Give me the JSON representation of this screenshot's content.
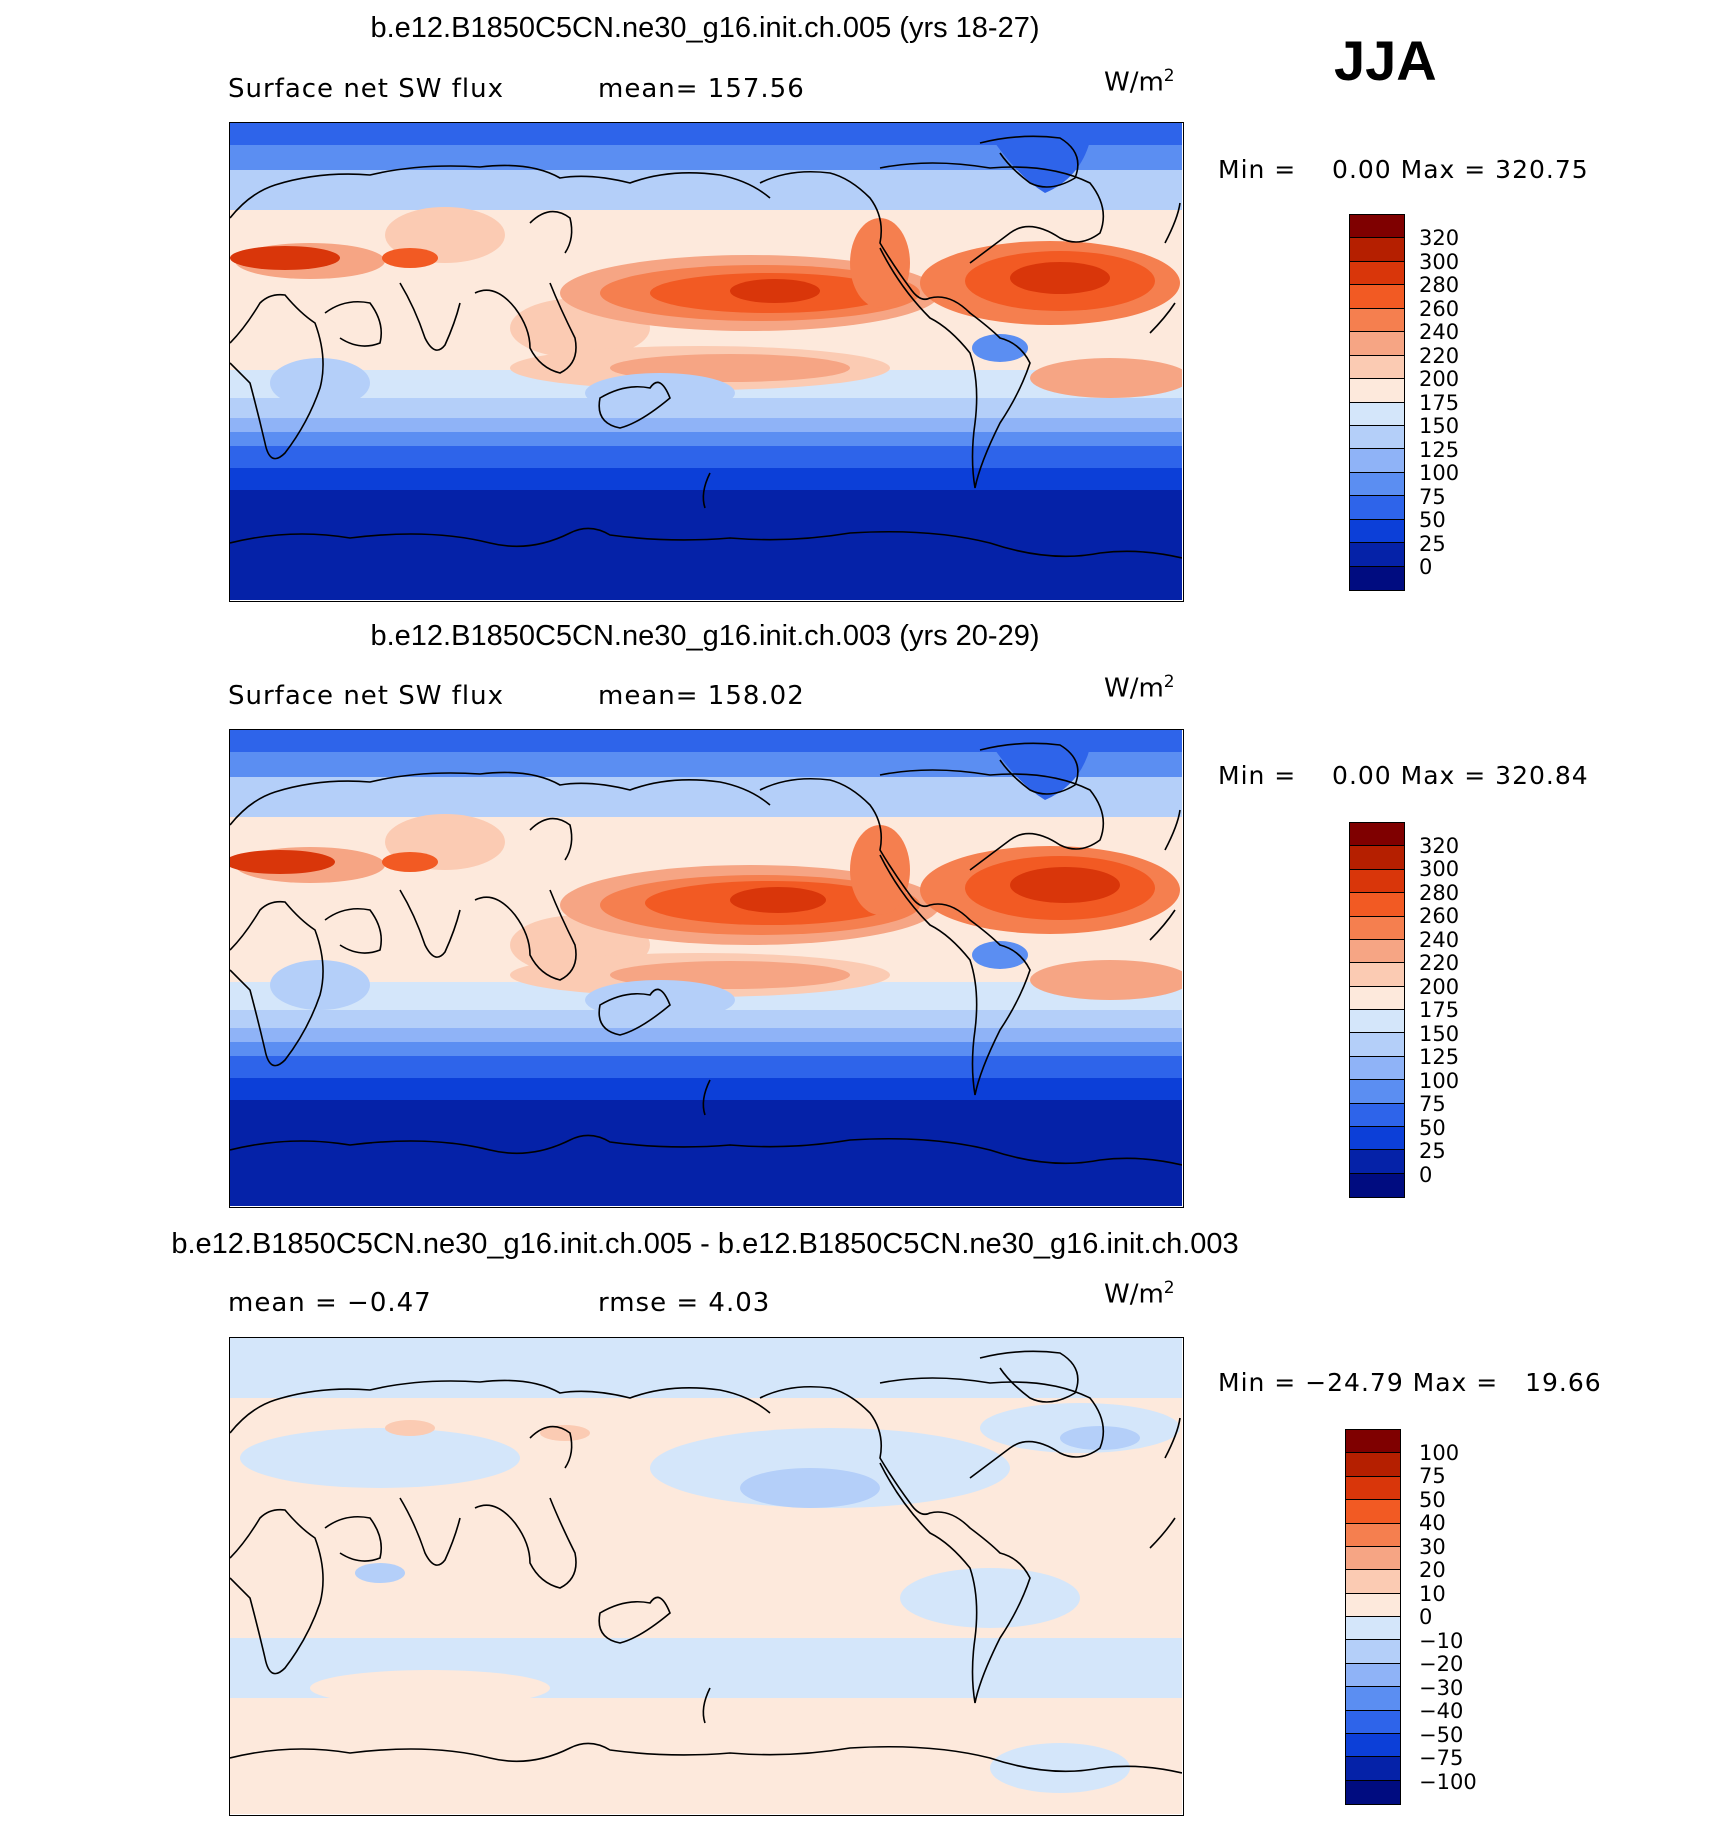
{
  "season": "JJA",
  "units_base": "W/m",
  "units_exp": "2",
  "panels": [
    {
      "title": "b.e12.B1850C5CN.ne30_g16.init.ch.005 (yrs 18-27)",
      "left_label": "Surface net SW flux",
      "right_label": "mean= 157.56",
      "minmax": "Min =    0.00 Max = 320.75",
      "colorbar_labels": [
        "320",
        "300",
        "280",
        "260",
        "240",
        "220",
        "200",
        "175",
        "150",
        "125",
        "100",
        "75",
        "50",
        "25",
        "0"
      ],
      "colors": [
        "#7f0000",
        "#b51f00",
        "#d9360a",
        "#f25a23",
        "#f57f4f",
        "#f6a584",
        "#fbcbb3",
        "#fde9dc",
        "#d4e6fa",
        "#b4cff9",
        "#8fb3f7",
        "#5b8ef2",
        "#2e64ea",
        "#0c3fd8",
        "#0522a8",
        "#000c80"
      ]
    },
    {
      "title": "b.e12.B1850C5CN.ne30_g16.init.ch.003 (yrs 20-29)",
      "left_label": "Surface net SW flux",
      "right_label": "mean= 158.02",
      "minmax": "Min =    0.00 Max = 320.84",
      "colorbar_labels": [
        "320",
        "300",
        "280",
        "260",
        "240",
        "220",
        "200",
        "175",
        "150",
        "125",
        "100",
        "75",
        "50",
        "25",
        "0"
      ],
      "colors": [
        "#7f0000",
        "#b51f00",
        "#d9360a",
        "#f25a23",
        "#f57f4f",
        "#f6a584",
        "#fbcbb3",
        "#fde9dc",
        "#d4e6fa",
        "#b4cff9",
        "#8fb3f7",
        "#5b8ef2",
        "#2e64ea",
        "#0c3fd8",
        "#0522a8",
        "#000c80"
      ]
    },
    {
      "title": "b.e12.B1850C5CN.ne30_g16.init.ch.005 - b.e12.B1850C5CN.ne30_g16.init.ch.003",
      "left_label": "mean =   −0.47",
      "right_label": "rmse =    4.03",
      "minmax": "Min = −24.79 Max =   19.66",
      "colorbar_labels": [
        "100",
        "75",
        "50",
        "40",
        "30",
        "20",
        "10",
        "0",
        "−10",
        "−20",
        "−30",
        "−40",
        "−50",
        "−75",
        "−100"
      ],
      "colors": [
        "#7f0000",
        "#b51f00",
        "#d9360a",
        "#f25a23",
        "#f57f4f",
        "#f6a584",
        "#fbcbb3",
        "#fde9dc",
        "#d4e6fa",
        "#b4cff9",
        "#8fb3f7",
        "#5b8ef2",
        "#2e64ea",
        "#0c3fd8",
        "#0522a8",
        "#000c80"
      ]
    }
  ]
}
